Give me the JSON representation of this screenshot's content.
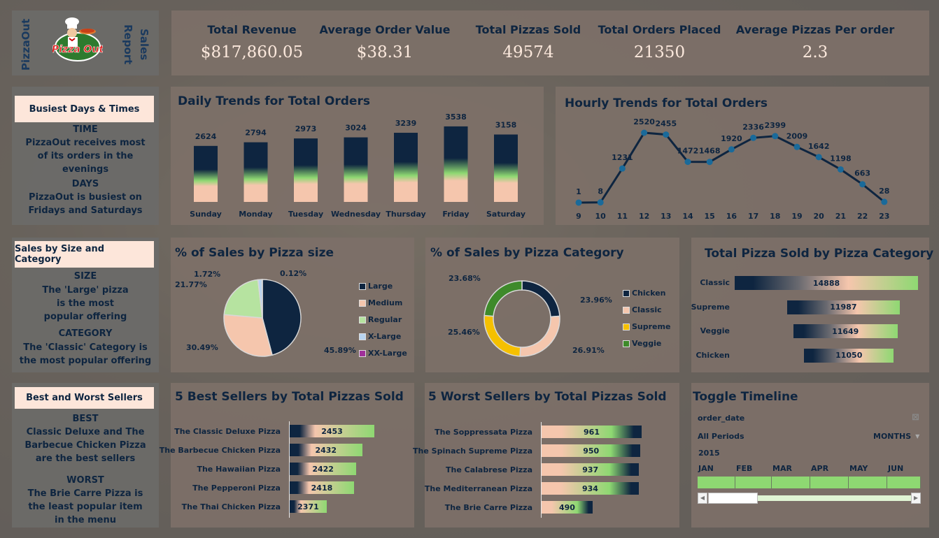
{
  "header": {
    "brand_vertical": "PizzaOut",
    "report_vertical_1": "Sales",
    "report_vertical_2": "Report",
    "logo_text": "Pizza Out",
    "logo_icon": "chef-logo-icon"
  },
  "kpis": [
    {
      "label": "Total Revenue",
      "value": "$817,860.05"
    },
    {
      "label": "Average Order Value",
      "value": "$38.31"
    },
    {
      "label": "Total Pizzas Sold",
      "value": "49574"
    },
    {
      "label": "Total Orders Placed",
      "value": "21350"
    },
    {
      "label": "Average Pizzas Per order",
      "value": "2.3"
    }
  ],
  "insights": {
    "busiest": {
      "header": "Busiest Days &  Times",
      "h1": "TIME",
      "t1": "PizzaOut receives most of its orders in the evenings",
      "h2": "DAYS",
      "t2": "PizzaOut is busiest on Fridays and Saturdays"
    },
    "size_category": {
      "header": "Sales by Size and Category",
      "h1": "SIZE",
      "t1": "The 'Large' pizza is the most popular offering",
      "h2": "CATEGORY",
      "t2": "The 'Classic' Category is the most popular offering"
    },
    "best_worst": {
      "header": "Best and Worst Sellers",
      "h1": "BEST",
      "t1": "Classic Deluxe and The Barbecue Chicken Pizza are the best sellers",
      "h2": "WORST",
      "t2": "The Brie Carre Pizza is the least popular item in the menu"
    }
  },
  "colors": {
    "navy": "#0e2540",
    "peach": "#f5c6ad",
    "green": "#8ed872",
    "light_green": "#b6e3a0",
    "light_blue": "#b8d4f0",
    "purple": "#a0309a",
    "yellow": "#f5c000",
    "dark_green": "#3e8a2a",
    "kpi_value": "#fbe8dc"
  },
  "chart_data": [
    {
      "id": "daily",
      "type": "bar",
      "title": "Daily Trends for Total Orders",
      "categories": [
        "Sunday",
        "Monday",
        "Tuesday",
        "Wednesday",
        "Thursday",
        "Friday",
        "Saturday"
      ],
      "values": [
        2624,
        2794,
        2973,
        3024,
        3239,
        3538,
        3158
      ],
      "xlabel": "",
      "ylabel": "",
      "grid": false
    },
    {
      "id": "hourly",
      "type": "line",
      "title": "Hourly Trends for Total Orders",
      "x": [
        9,
        10,
        11,
        12,
        13,
        14,
        15,
        16,
        17,
        18,
        19,
        20,
        21,
        22,
        23
      ],
      "values": [
        1,
        8,
        1231,
        2520,
        2455,
        1472,
        1468,
        1920,
        2336,
        2399,
        2009,
        1642,
        1198,
        663,
        28
      ],
      "xlabel": "",
      "ylabel": "",
      "grid": false
    },
    {
      "id": "size",
      "type": "pie",
      "title": "% of Sales by Pizza size",
      "labels": [
        "Large",
        "Medium",
        "Regular",
        "X-Large",
        "XX-Large"
      ],
      "values": [
        45.89,
        30.49,
        21.77,
        1.72,
        0.12
      ],
      "value_labels": [
        "45.89%",
        "30.49%",
        "21.77%",
        "1.72%",
        "0.12%"
      ],
      "colors": [
        "#0e2540",
        "#f5c6ad",
        "#b6e3a0",
        "#b8d4f0",
        "#a0309a"
      ],
      "legend": "right"
    },
    {
      "id": "category",
      "type": "pie",
      "subtype": "donut",
      "title": "% of Sales by Pizza Category",
      "labels": [
        "Chicken",
        "Classic",
        "Supreme",
        "Veggie"
      ],
      "values": [
        23.96,
        26.91,
        25.46,
        23.68
      ],
      "value_labels": [
        "23.96%",
        "26.91%",
        "25.46%",
        "23.68%"
      ],
      "colors": [
        "#0e2540",
        "#f5c6ad",
        "#f5c000",
        "#3e8a2a"
      ],
      "legend": "right"
    },
    {
      "id": "cat_sold",
      "type": "bar",
      "orientation": "horizontal",
      "title": "Total Pizza Sold by Pizza Category",
      "categories": [
        "Classic",
        "Supreme",
        "Veggie",
        "Chicken"
      ],
      "values": [
        14888,
        11987,
        11649,
        11050
      ]
    },
    {
      "id": "best",
      "type": "bar",
      "orientation": "horizontal",
      "title": "5 Best Sellers by Total Pizzas Sold",
      "categories": [
        "The Classic Deluxe Pizza",
        "The Barbecue Chicken Pizza",
        "The Hawaiian Pizza",
        "The Pepperoni Pizza",
        "The Thai Chicken Pizza"
      ],
      "values": [
        2453,
        2432,
        2422,
        2418,
        2371
      ]
    },
    {
      "id": "worst",
      "type": "bar",
      "orientation": "horizontal",
      "title": "5 Worst Sellers by Total Pizzas Sold",
      "categories": [
        "The Soppressata Pizza",
        "The Spinach Supreme Pizza",
        "The Calabrese Pizza",
        "The Mediterranean Pizza",
        "The Brie Carre Pizza"
      ],
      "values": [
        961,
        950,
        937,
        934,
        490
      ]
    }
  ],
  "timeline": {
    "title": "Toggle Timeline",
    "field": "order_date",
    "period_label": "All Periods",
    "granularity": "MONTHS",
    "year": "2015",
    "months": [
      "JAN",
      "FEB",
      "MAR",
      "APR",
      "MAY",
      "JUN"
    ],
    "clear_filter_icon": "clear-filter-icon"
  }
}
